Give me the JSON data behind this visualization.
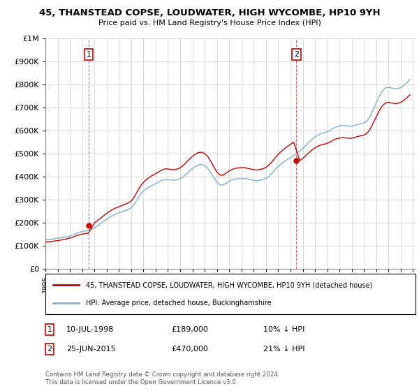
{
  "title": "45, THANSTEAD COPSE, LOUDWATER, HIGH WYCOMBE, HP10 9YH",
  "subtitle": "Price paid vs. HM Land Registry's House Price Index (HPI)",
  "legend_label_red": "45, THANSTEAD COPSE, LOUDWATER, HIGH WYCOMBE, HP10 9YH (detached house)",
  "legend_label_blue": "HPI: Average price, detached house, Buckinghamshire",
  "annotation1_date": "10-JUL-1998",
  "annotation1_price": "£189,000",
  "annotation1_hpi": "10% ↓ HPI",
  "annotation2_date": "25-JUN-2015",
  "annotation2_price": "£470,000",
  "annotation2_hpi": "21% ↓ HPI",
  "footer": "Contains HM Land Registry data © Crown copyright and database right 2024.\nThis data is licensed under the Open Government Licence v3.0.",
  "yticks": [
    0,
    100000,
    200000,
    300000,
    400000,
    500000,
    600000,
    700000,
    800000,
    900000,
    1000000
  ],
  "ytick_labels": [
    "£0",
    "£100K",
    "£200K",
    "£300K",
    "£400K",
    "£500K",
    "£600K",
    "£700K",
    "£800K",
    "£900K",
    "£1M"
  ],
  "red_color": "#cc0000",
  "blue_color": "#7bafd4",
  "grid_color": "#cccccc",
  "purchase1_year": 1998.53,
  "purchase1_value": 189000,
  "purchase2_year": 2015.48,
  "purchase2_value": 470000
}
